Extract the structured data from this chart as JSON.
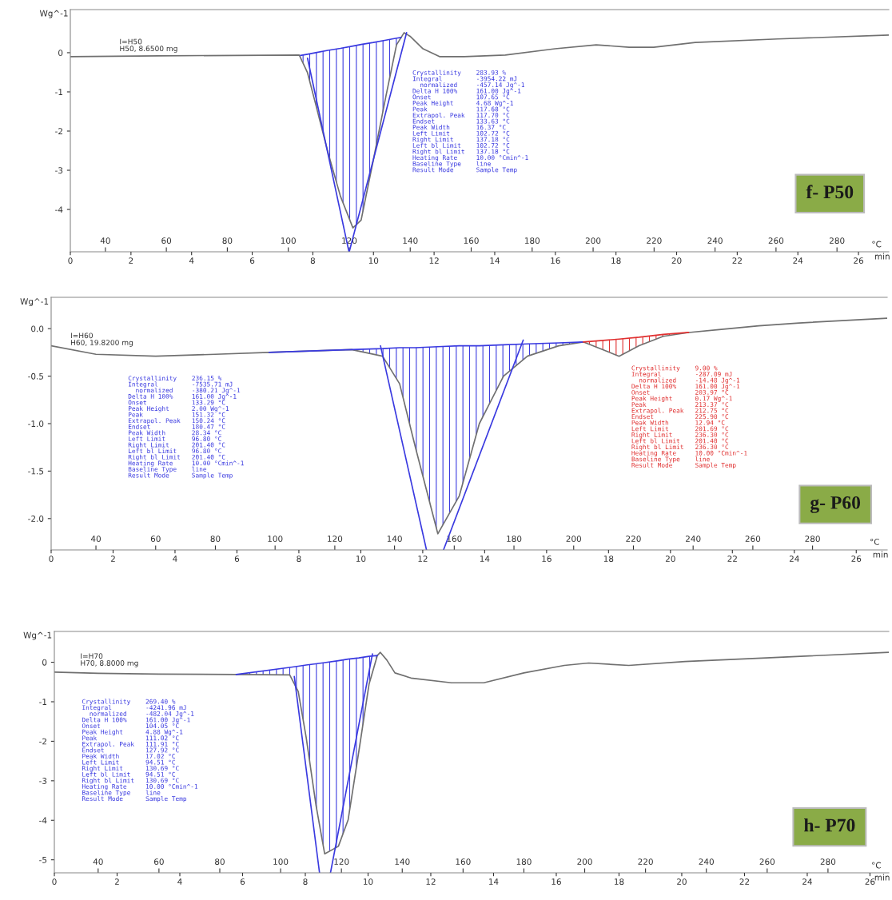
{
  "chart_data": [
    {
      "type": "line",
      "xlabel": "°C",
      "x2label": "min",
      "ylabel": "Wg^-1",
      "xlim": [
        28.5,
        297
      ],
      "xticks": [
        40,
        60,
        80,
        100,
        120,
        140,
        160,
        180,
        200,
        220,
        240,
        260,
        280
      ],
      "x2lim": [
        0,
        27.0
      ],
      "x2ticks": [
        0,
        2,
        4,
        6,
        8,
        10,
        12,
        14,
        16,
        18,
        20,
        22,
        24,
        26
      ],
      "ylim": [
        -5.08,
        1.1
      ],
      "yticks": [
        0,
        -1,
        -2,
        -3,
        -4
      ],
      "series": [
        {
          "color": "#707070",
          "x": [
            28.5,
            57.6,
            103.6,
            106.3,
            109,
            113,
            117.1,
            121.2,
            123.9,
            127.9,
            132,
            135.5,
            138,
            140.1,
            144.2,
            149.6,
            157.7,
            171.2,
            187.5,
            201,
            211.8,
            219.9,
            233.5,
            260.5,
            297
          ],
          "values": [
            -0.1,
            -0.08,
            -0.06,
            -0.51,
            -1.32,
            -2.54,
            -3.66,
            -4.47,
            -4.27,
            -2.74,
            -1.12,
            0.2,
            0.51,
            0.41,
            0.1,
            -0.1,
            -0.1,
            -0.06,
            0.1,
            0.2,
            0.14,
            0.14,
            0.26,
            0.35,
            0.45
          ]
        },
        {
          "color": "#3a3ae0",
          "x": [
            106.3,
            119.9
          ],
          "values": [
            -0.14,
            -5.08
          ]
        },
        {
          "color": "#3a3ae0",
          "x": [
            138.8,
            120.0
          ],
          "values": [
            0.51,
            -5.08
          ]
        },
        {
          "color": "#3a3ae0",
          "x": [
            104,
            106.3,
            109,
            113,
            117.1,
            121.2,
            123.9,
            127.9,
            132,
            135.5,
            137
          ],
          "values": [
            -0.07,
            -0.04,
            0.0,
            0.06,
            0.11,
            0.17,
            0.21,
            0.26,
            0.32,
            0.37,
            0.39
          ],
          "lower": [
            -0.07,
            -0.51,
            -1.32,
            -2.54,
            -3.66,
            -4.47,
            -4.27,
            -2.74,
            -1.12,
            0.2,
            0.39
          ],
          "upper": [
            -0.07,
            -0.04,
            0.0,
            0.06,
            0.11,
            0.17,
            0.21,
            0.26,
            0.32,
            0.37,
            0.39
          ]
        }
      ],
      "annotations": [
        "I=H50\nH50, 8.6500 mg",
        "Crystallinity    283.93 %\nIntegral         -3954.22 mJ\n  normalized     -457.14 Jg^-1\nDelta H 100%     161.00 Jg^-1\nOnset            107.65 °C\nPeak Height      4.68 Wg^-1\nPeak             117.68 °C\nExtrapol. Peak   117.70 °C\nEndset           133.63 °C\nPeak Width       16.37 °C\nLeft Limit       102.72 °C\nRight Limit      137.18 °C\nLeft bl Limit    102.72 °C\nRight bl Limit   137.18 °C\nHeating Rate     10.00 °Cmin^-1\nBaseline Type    line\nResult Mode      Sample Temp",
        "f- P50"
      ]
    },
    {
      "type": "line",
      "xlabel": "°C",
      "x2label": "min",
      "ylabel": "Wg^-1",
      "xlim": [
        25,
        305
      ],
      "xticks": [
        40,
        60,
        80,
        100,
        120,
        140,
        160,
        180,
        200,
        220,
        240,
        260,
        280
      ],
      "x2lim": [
        0,
        27.0
      ],
      "x2ticks": [
        0,
        2,
        4,
        6,
        8,
        10,
        12,
        14,
        16,
        18,
        20,
        22,
        24,
        26
      ],
      "ylim": [
        -2.33,
        0.33
      ],
      "yticks": [
        {
          "value": 0,
          "label": "0.0"
        },
        -0.5,
        {
          "value": -1,
          "label": "-1.0"
        },
        -1.5,
        {
          "value": -2,
          "label": "-2.0"
        }
      ],
      "series": [
        {
          "color": "#707070",
          "x": [
            25,
            40,
            60,
            80,
            98,
            125.6,
            136,
            141.7,
            147,
            154.5,
            161.7,
            168.4,
            176.5,
            184.5,
            195,
            203.2,
            215.2,
            221.9,
            230,
            238.5,
            248.7,
            262,
            275.5,
            305
          ],
          "values": [
            -0.18,
            -0.27,
            -0.29,
            -0.27,
            -0.25,
            -0.22,
            -0.29,
            -0.58,
            -1.25,
            -2.16,
            -1.76,
            -1.0,
            -0.5,
            -0.29,
            -0.18,
            -0.14,
            -0.29,
            -0.18,
            -0.08,
            -0.04,
            -0.01,
            0.03,
            0.06,
            0.11
          ]
        },
        {
          "color": "#3a3ae0",
          "x": [
            135.3,
            150.7
          ],
          "values": [
            -0.18,
            -2.33
          ]
        },
        {
          "color": "#3a3ae0",
          "x": [
            183.1,
            156.4
          ],
          "values": [
            -0.12,
            -2.33
          ]
        },
        {
          "color": "#3a3ae0",
          "x": [
            98,
            125.6,
            136,
            141.7,
            147,
            154.5,
            161.7,
            168.4,
            176.5,
            184.5,
            195,
            203.2
          ],
          "values": [
            -0.25,
            -0.22,
            -0.21,
            -0.2,
            -0.2,
            -0.19,
            -0.18,
            -0.18,
            -0.17,
            -0.16,
            -0.15,
            -0.14
          ],
          "lower": [
            -0.25,
            -0.22,
            -0.29,
            -0.58,
            -1.25,
            -2.16,
            -1.76,
            -1.0,
            -0.5,
            -0.29,
            -0.18,
            -0.14
          ],
          "upper": [
            -0.25,
            -0.22,
            -0.21,
            -0.2,
            -0.2,
            -0.19,
            -0.18,
            -0.18,
            -0.17,
            -0.16,
            -0.15,
            -0.14
          ]
        },
        {
          "color": "#e03030",
          "x": [
            203.2,
            215.2,
            221.9,
            230,
            238.5
          ],
          "values": [
            -0.14,
            -0.11,
            -0.09,
            -0.06,
            -0.04
          ],
          "lower": [
            -0.14,
            -0.29,
            -0.18,
            -0.08,
            -0.04
          ],
          "upper": [
            -0.14,
            -0.11,
            -0.09,
            -0.06,
            -0.04
          ]
        }
      ],
      "annotations": [
        "I=H60\nH60, 19.8200 mg",
        "Crystallinity    236.15 %\nIntegral         -7535.71 mJ\n  normalized     -380.21 Jg^-1\nDelta H 100%     161.00 Jg^-1\nOnset            133.29 °C\nPeak Height      2.00 Wg^-1\nPeak             151.32 °C\nExtrapol. Peak   150.24 °C\nEndset           180.47 °C\nPeak Width       28.34 °C\nLeft Limit       96.80 °C\nRight Limit      201.40 °C\nLeft bl Limit    96.80 °C\nRight bl Limit   201.40 °C\nHeating Rate     10.00 °Cmin^-1\nBaseline Type    line\nResult Mode      Sample Temp",
        "Crystallinity    9.00 %\nIntegral         -287.09 mJ\n  normalized     -14.48 Jg^-1\nDelta H 100%     161.00 Jg^-1\nOnset            203.97 °C\nPeak Height      0.17 Wg^-1\nPeak             213.37 °C\nExtrapol. Peak   212.75 °C\nEndset           225.90 °C\nPeak Width       12.94 °C\nLeft Limit       201.69 °C\nRight Limit      236.30 °C\nLeft bl Limit    201.40 °C\nRight bl Limit   236.30 °C\nHeating Rate     10.00 °Cmin^-1\nBaseline Type    line\nResult Mode      Sample Temp",
        "g- P60"
      ]
    },
    {
      "type": "line",
      "xlabel": "°C",
      "x2label": "min",
      "ylabel": "Wg^-1",
      "xlim": [
        25.6,
        300
      ],
      "xticks": [
        40,
        60,
        80,
        100,
        120,
        140,
        160,
        180,
        200,
        220,
        240,
        260,
        280
      ],
      "x2lim": [
        0,
        26.6
      ],
      "x2ticks": [
        0,
        2,
        4,
        6,
        8,
        10,
        12,
        14,
        16,
        18,
        20,
        22,
        24,
        26
      ],
      "ylim": [
        -5.33,
        0.78
      ],
      "yticks": [
        0,
        -1,
        -2,
        -3,
        -4,
        -5
      ],
      "series": [
        {
          "color": "#707070",
          "x": [
            25.6,
            40,
            60,
            85.4,
            103,
            105.8,
            108.4,
            111.6,
            114.5,
            119,
            122.2,
            125.7,
            129.1,
            131.8,
            132.8,
            134.9,
            137.6,
            142.9,
            156.2,
            166.8,
            180,
            193.3,
            201.3,
            214.5,
            233,
            259.6,
            300
          ],
          "values": [
            -0.25,
            -0.28,
            -0.3,
            -0.31,
            -0.32,
            -0.74,
            -1.9,
            -3.6,
            -4.85,
            -4.66,
            -3.99,
            -2.27,
            -0.55,
            0.17,
            0.25,
            0.06,
            -0.27,
            -0.4,
            -0.52,
            -0.52,
            -0.27,
            -0.08,
            -0.02,
            -0.08,
            0.02,
            0.11,
            0.25
          ]
        },
        {
          "color": "#3a3ae0",
          "x": [
            104.5,
            112.8
          ],
          "values": [
            -0.36,
            -5.33
          ]
        },
        {
          "color": "#3a3ae0",
          "x": [
            130.2,
            116.4
          ],
          "values": [
            0.21,
            -5.33
          ]
        },
        {
          "color": "#3a3ae0",
          "x": [
            85.4,
            103,
            105.8,
            108.4,
            111.6,
            114.5,
            119,
            122.2,
            125.7,
            129.1,
            131.8
          ],
          "values": [
            -0.31,
            -0.13,
            -0.1,
            -0.07,
            -0.04,
            -0.01,
            0.04,
            0.08,
            0.11,
            0.15,
            0.17
          ],
          "lower": [
            -0.31,
            -0.32,
            -0.74,
            -1.9,
            -3.6,
            -4.85,
            -4.66,
            -3.99,
            -2.27,
            -0.55,
            0.17
          ],
          "upper": [
            -0.31,
            -0.13,
            -0.1,
            -0.07,
            -0.04,
            -0.01,
            0.04,
            0.08,
            0.11,
            0.15,
            0.17
          ]
        }
      ],
      "annotations": [
        "I=H70\nH70, 8.8000 mg",
        "Crystallinity    269.40 %\nIntegral         -4241.96 mJ\n  normalized     -482.04 Jg^-1\nDelta H 100%     161.00 Jg^-1\nOnset            104.05 °C\nPeak Height      4.88 Wg^-1\nPeak             111.02 °C\nExtrapol. Peak   111.91 °C\nEndset           127.92 °C\nPeak Width       17.02 °C\nLeft Limit       94.51 °C\nRight Limit      130.69 °C\nLeft bl Limit    94.51 °C\nRight bl Limit   130.69 °C\nHeating Rate     10.00 °Cmin^-1\nBaseline Type    line\nResult Mode      Sample Temp",
        "h- P70"
      ]
    }
  ]
}
